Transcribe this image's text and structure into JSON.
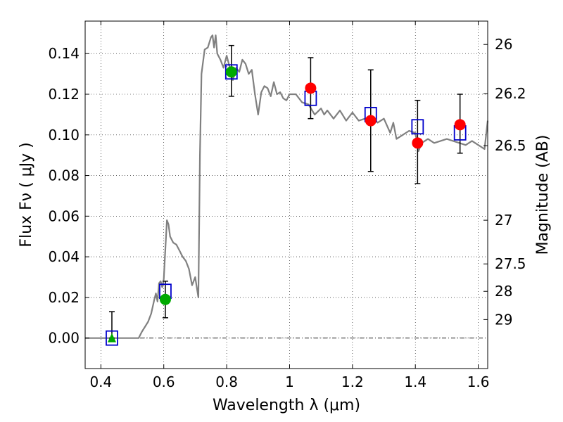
{
  "chart_data": {
    "type": "scatter",
    "title": "",
    "xlabel": "Wavelength  λ (μm)",
    "ylabel": "Flux  Fν  ( μJy )",
    "y2label": "Magnitude (AB)",
    "xlim": [
      0.35,
      1.63
    ],
    "ylim": [
      -0.015,
      0.156
    ],
    "grid": true,
    "xticks": [
      0.4,
      0.6,
      0.8,
      1.0,
      1.2,
      1.4,
      1.6
    ],
    "xtick_labels": [
      "0.4",
      "0.6",
      "0.8",
      "1",
      "1.2",
      "1.4",
      "1.6"
    ],
    "yticks": [
      0.0,
      0.02,
      0.04,
      0.06,
      0.08,
      0.1,
      0.12,
      0.14
    ],
    "ytick_labels": [
      "0.00",
      "0.02",
      "0.04",
      "0.06",
      "0.08",
      "0.10",
      "0.12",
      "0.14"
    ],
    "y2ticks": [
      {
        "flux": 0.1445,
        "label": "26"
      },
      {
        "flux": 0.1203,
        "label": "26.2"
      },
      {
        "flux": 0.0947,
        "label": "26.5"
      },
      {
        "flux": 0.058,
        "label": "27"
      },
      {
        "flux": 0.0365,
        "label": "27.5"
      },
      {
        "flux": 0.023,
        "label": "28"
      },
      {
        "flux": 0.0091,
        "label": "29"
      }
    ],
    "zero_line": 0.0,
    "series": [
      {
        "kind": "line",
        "color": "#808080",
        "x": [
          0.35,
          0.52,
          0.53,
          0.55,
          0.56,
          0.57,
          0.575,
          0.58,
          0.585,
          0.59,
          0.595,
          0.6,
          0.605,
          0.61,
          0.615,
          0.62,
          0.63,
          0.64,
          0.65,
          0.66,
          0.67,
          0.68,
          0.69,
          0.7,
          0.705,
          0.71,
          0.715,
          0.72,
          0.73,
          0.74,
          0.75,
          0.755,
          0.76,
          0.765,
          0.77,
          0.78,
          0.79,
          0.8,
          0.81,
          0.82,
          0.83,
          0.84,
          0.85,
          0.86,
          0.87,
          0.88,
          0.89,
          0.9,
          0.91,
          0.92,
          0.93,
          0.94,
          0.95,
          0.96,
          0.97,
          0.98,
          0.99,
          1.0,
          1.02,
          1.04,
          1.06,
          1.08,
          1.1,
          1.11,
          1.12,
          1.14,
          1.16,
          1.18,
          1.2,
          1.22,
          1.24,
          1.26,
          1.28,
          1.3,
          1.32,
          1.33,
          1.34,
          1.36,
          1.38,
          1.4,
          1.41,
          1.42,
          1.44,
          1.46,
          1.48,
          1.5,
          1.52,
          1.54,
          1.56,
          1.58,
          1.6,
          1.61,
          1.62,
          1.63
        ],
        "y": [
          0.0,
          0.0,
          0.003,
          0.008,
          0.012,
          0.019,
          0.022,
          0.018,
          0.027,
          0.028,
          0.025,
          0.029,
          0.044,
          0.058,
          0.056,
          0.05,
          0.047,
          0.046,
          0.043,
          0.04,
          0.038,
          0.034,
          0.026,
          0.03,
          0.025,
          0.02,
          0.09,
          0.13,
          0.142,
          0.143,
          0.148,
          0.149,
          0.143,
          0.149,
          0.14,
          0.137,
          0.133,
          0.139,
          0.133,
          0.127,
          0.133,
          0.131,
          0.137,
          0.135,
          0.13,
          0.132,
          0.12,
          0.11,
          0.121,
          0.124,
          0.123,
          0.119,
          0.126,
          0.12,
          0.121,
          0.118,
          0.117,
          0.12,
          0.12,
          0.116,
          0.115,
          0.11,
          0.113,
          0.11,
          0.112,
          0.108,
          0.112,
          0.107,
          0.111,
          0.107,
          0.108,
          0.109,
          0.106,
          0.108,
          0.101,
          0.106,
          0.098,
          0.1,
          0.102,
          0.101,
          0.092,
          0.096,
          0.098,
          0.096,
          0.097,
          0.098,
          0.097,
          0.096,
          0.095,
          0.097,
          0.095,
          0.094,
          0.093,
          0.107
        ]
      },
      {
        "kind": "errorbar",
        "color": "#000000",
        "points": [
          {
            "x": 0.435,
            "low": 0.0,
            "high": 0.013
          },
          {
            "x": 0.605,
            "low": 0.01,
            "high": 0.028
          },
          {
            "x": 0.815,
            "low": 0.119,
            "high": 0.144
          },
          {
            "x": 1.067,
            "low": 0.108,
            "high": 0.138
          },
          {
            "x": 1.258,
            "low": 0.082,
            "high": 0.132
          },
          {
            "x": 1.407,
            "low": 0.076,
            "high": 0.117
          },
          {
            "x": 1.542,
            "low": 0.091,
            "high": 0.12
          }
        ]
      },
      {
        "kind": "marker",
        "marker": "square-open",
        "color": "#0000cc",
        "x": [
          0.435,
          0.605,
          0.815,
          1.067,
          1.258,
          1.407,
          1.542
        ],
        "y": [
          0.0,
          0.023,
          0.131,
          0.118,
          0.11,
          0.104,
          0.101
        ]
      },
      {
        "kind": "marker",
        "marker": "triangle",
        "color": "#00aa00",
        "x": [
          0.435
        ],
        "y": [
          0.0
        ]
      },
      {
        "kind": "marker",
        "marker": "circle",
        "color": "#00aa00",
        "x": [
          0.605,
          0.815
        ],
        "y": [
          0.019,
          0.131
        ]
      },
      {
        "kind": "marker",
        "marker": "circle",
        "color": "#ff0000",
        "x": [
          1.067,
          1.258,
          1.407,
          1.542
        ],
        "y": [
          0.123,
          0.107,
          0.096,
          0.105
        ]
      }
    ]
  }
}
